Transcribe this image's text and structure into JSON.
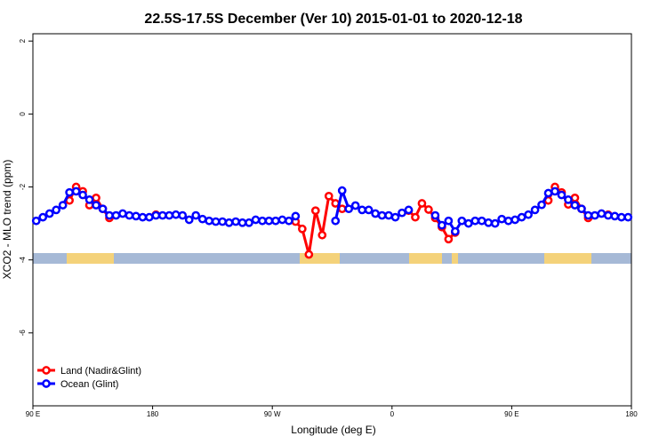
{
  "chart_data": {
    "type": "line",
    "title": "22.5S-17.5S December (Ver 10)   2015-01-01 to 2020-12-18",
    "x_label": "Longitude (deg E)",
    "y_label": "XCO2 - MLO trend (ppm)",
    "x": [
      92.5,
      97.5,
      102.5,
      107.5,
      112.5,
      117.5,
      122.5,
      127.5,
      132.5,
      137.5,
      142.5,
      147.5,
      152.5,
      157.5,
      162.5,
      167.5,
      172.5,
      177.5,
      182.5,
      187.5,
      192.5,
      197.5,
      202.5,
      207.5,
      212.5,
      217.5,
      222.5,
      227.5,
      232.5,
      237.5,
      242.5,
      247.5,
      252.5,
      257.5,
      262.5,
      267.5,
      272.5,
      277.5,
      282.5,
      287.5,
      292.5,
      297.5,
      302.5,
      307.5,
      312.5,
      317.5,
      322.5,
      327.5,
      332.5,
      337.5,
      342.5,
      347.5,
      352.5,
      357.5,
      362.5,
      367.5,
      372.5,
      377.5,
      382.5,
      387.5,
      392.5,
      397.5,
      402.5,
      407.5,
      412.5,
      417.5,
      422.5,
      427.5,
      432.5,
      437.5,
      442.5,
      447.5,
      452.5,
      457.5,
      462.5,
      467.5,
      472.5,
      477.5,
      482.5,
      487.5,
      492.5,
      497.5,
      502.5,
      507.5,
      512.5,
      517.5,
      522.5,
      527.5,
      532.5,
      537.5
    ],
    "series": [
      {
        "name": "Land (Nadir&Glint)",
        "color": "#ff0000",
        "values": [
          null,
          null,
          null,
          null,
          null,
          -2.37,
          -2.0,
          -2.12,
          -2.5,
          -2.3,
          -2.6,
          -2.85,
          null,
          null,
          null,
          null,
          null,
          null,
          -2.76,
          null,
          null,
          null,
          null,
          null,
          null,
          null,
          null,
          null,
          null,
          null,
          null,
          null,
          null,
          null,
          null,
          null,
          null,
          null,
          null,
          -2.95,
          -3.15,
          -3.85,
          -2.65,
          -3.32,
          -2.25,
          -2.45,
          -2.6,
          null,
          null,
          null,
          null,
          null,
          null,
          null,
          null,
          null,
          -2.65,
          -2.83,
          -2.45,
          -2.62,
          -2.85,
          -3.1,
          -3.43,
          -3.25,
          null,
          null,
          null,
          null,
          null,
          null,
          null,
          null,
          null,
          null,
          null,
          null,
          null,
          -2.37,
          -2.0,
          -2.15,
          -2.48,
          -2.3,
          -2.6,
          -2.85,
          null,
          null,
          -2.76,
          null,
          null,
          null
        ]
      },
      {
        "name": "Ocean (Glint)",
        "color": "#0000ff",
        "values": [
          -2.93,
          -2.83,
          -2.73,
          -2.63,
          -2.5,
          -2.15,
          -2.12,
          -2.22,
          -2.35,
          -2.5,
          -2.6,
          -2.78,
          -2.78,
          -2.73,
          -2.78,
          -2.8,
          -2.83,
          -2.83,
          -2.78,
          -2.78,
          -2.78,
          -2.76,
          -2.78,
          -2.9,
          -2.78,
          -2.88,
          -2.93,
          -2.95,
          -2.95,
          -2.98,
          -2.95,
          -2.98,
          -2.98,
          -2.9,
          -2.93,
          -2.93,
          -2.93,
          -2.9,
          -2.93,
          -2.8,
          null,
          null,
          null,
          null,
          null,
          -2.93,
          -2.1,
          -2.6,
          -2.51,
          -2.63,
          -2.63,
          -2.73,
          -2.78,
          -2.78,
          -2.83,
          -2.71,
          -2.63,
          null,
          null,
          null,
          -2.78,
          -3.05,
          -2.93,
          -3.22,
          -2.93,
          -3.0,
          -2.93,
          -2.93,
          -2.98,
          -3.0,
          -2.88,
          -2.93,
          -2.9,
          -2.83,
          -2.76,
          -2.63,
          -2.49,
          -2.17,
          -2.12,
          -2.22,
          -2.35,
          -2.5,
          -2.6,
          -2.78,
          -2.78,
          -2.73,
          -2.78,
          -2.8,
          -2.83,
          -2.83
        ]
      }
    ],
    "xlim": [
      90,
      540
    ],
    "xticks": [
      {
        "value": 90,
        "label": "90 E"
      },
      {
        "value": 180,
        "label": "180"
      },
      {
        "value": 270,
        "label": "90 W"
      },
      {
        "value": 360,
        "label": "0"
      },
      {
        "value": 450,
        "label": "90 E"
      },
      {
        "value": 540,
        "label": "180"
      }
    ],
    "ylim": [
      -8,
      2.2
    ],
    "yticks": [
      -6,
      -4,
      -2,
      0,
      2
    ],
    "grid": false,
    "legend": "bottomleft"
  }
}
